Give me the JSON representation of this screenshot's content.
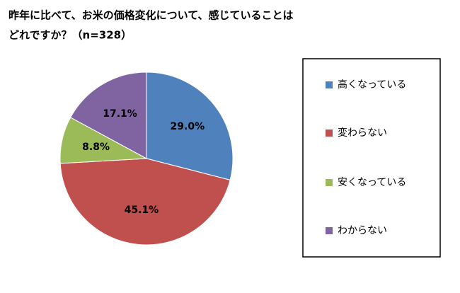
{
  "chart_data": {
    "type": "pie",
    "title": [
      "昨年に比べて、お米の価格変化について、感じていることは",
      "どれですか？（n=328）"
    ],
    "categories": [
      "高くなっている",
      "変わらない",
      "安くなっている",
      "わからない"
    ],
    "values": [
      29.0,
      45.1,
      8.8,
      17.1
    ],
    "value_labels": [
      "29.0%",
      "45.1%",
      "8.8%",
      "17.1%"
    ],
    "colors": [
      "#4f81bd",
      "#c0504d",
      "#9bbb59",
      "#8064a2"
    ],
    "legend": "right"
  }
}
